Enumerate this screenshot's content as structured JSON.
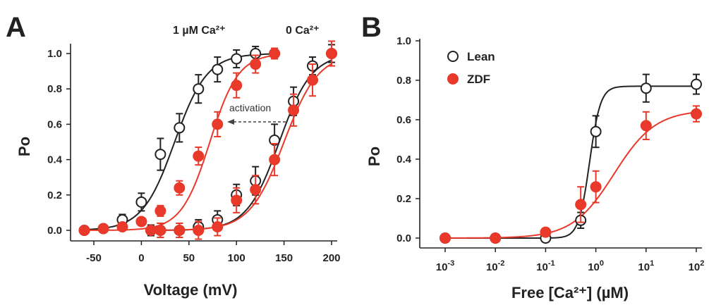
{
  "colors": {
    "lean": "#222222",
    "zdf": "#e8392a"
  },
  "chart_data": [
    {
      "panel_label": "A",
      "type": "scatter",
      "xlabel": "Voltage (mV)",
      "ylabel": "Po",
      "xlim": [
        -65,
        205
      ],
      "ylim": [
        -0.05,
        1.08
      ],
      "xticks": [
        -50,
        0,
        50,
        100,
        150,
        200
      ],
      "yticks": [
        "0.0",
        "0.2",
        "0.4",
        "0.6",
        "0.8",
        "1.0"
      ],
      "annotations": {
        "ca_1uM": "1 µM Ca²⁺",
        "ca_0": "0 Ca²⁺",
        "arrow_text": "activation"
      },
      "series": [
        {
          "key": "lean_1uM",
          "marker": "open",
          "x": [
            -60,
            -40,
            -20,
            0,
            20,
            40,
            60,
            80,
            100,
            120,
            140
          ],
          "y": [
            0.0,
            0.01,
            0.06,
            0.16,
            0.43,
            0.58,
            0.8,
            0.91,
            0.97,
            1.0,
            1.0
          ],
          "err": [
            0.01,
            0.02,
            0.03,
            0.05,
            0.09,
            0.08,
            0.08,
            0.07,
            0.05,
            0.04,
            0.02
          ]
        },
        {
          "key": "zdf_1uM",
          "marker": "filled",
          "x": [
            -60,
            -40,
            -20,
            0,
            20,
            40,
            60,
            80,
            100,
            120,
            140
          ],
          "y": [
            0.0,
            0.01,
            0.02,
            0.05,
            0.11,
            0.24,
            0.42,
            0.6,
            0.82,
            0.94,
            1.0
          ],
          "err": [
            0.01,
            0.01,
            0.02,
            0.02,
            0.03,
            0.04,
            0.05,
            0.07,
            0.07,
            0.05,
            0.03
          ]
        },
        {
          "key": "lean_0",
          "marker": "open",
          "x": [
            10,
            20,
            40,
            60,
            80,
            100,
            120,
            140,
            160,
            180,
            200
          ],
          "y": [
            0.0,
            0.0,
            0.0,
            0.02,
            0.06,
            0.2,
            0.28,
            0.51,
            0.73,
            0.93,
            1.0
          ],
          "err": [
            0.03,
            0.04,
            0.04,
            0.04,
            0.05,
            0.06,
            0.08,
            0.09,
            0.08,
            0.05,
            0.05
          ]
        },
        {
          "key": "zdf_0",
          "marker": "filled",
          "x": [
            10,
            20,
            40,
            60,
            80,
            100,
            120,
            140,
            160,
            180,
            200
          ],
          "y": [
            0.0,
            0.0,
            0.0,
            0.0,
            0.02,
            0.17,
            0.23,
            0.4,
            0.68,
            0.85,
            1.0
          ],
          "err": [
            0.02,
            0.04,
            0.04,
            0.05,
            0.05,
            0.07,
            0.08,
            0.09,
            0.09,
            0.09,
            0.07
          ]
        }
      ],
      "fits": [
        {
          "key": "lean_1uM",
          "v50": 35,
          "k": 17
        },
        {
          "key": "zdf_1uM",
          "v50": 72,
          "k": 15
        },
        {
          "key": "lean_0",
          "v50": 145,
          "k": 17
        },
        {
          "key": "zdf_0",
          "v50": 150,
          "k": 18
        }
      ]
    },
    {
      "panel_label": "B",
      "type": "scatter",
      "xscale": "log",
      "xlabel": "Free [Ca²⁺] (µM)",
      "ylabel": "Po",
      "xlim": [
        0.001,
        100
      ],
      "ylim": [
        -0.02,
        1.0
      ],
      "xticks": [
        {
          "base": "10",
          "exp": "-3"
        },
        {
          "base": "10",
          "exp": "-2"
        },
        {
          "base": "10",
          "exp": "-1"
        },
        {
          "base": "10",
          "exp": "0"
        },
        {
          "base": "10",
          "exp": "1"
        },
        {
          "base": "10",
          "exp": "2"
        }
      ],
      "yticks": [
        "0.0",
        "0.2",
        "0.4",
        "0.6",
        "0.8",
        "1.0"
      ],
      "legend": {
        "placement": "top-left",
        "items": [
          "Lean",
          "ZDF"
        ]
      },
      "series": [
        {
          "name": "Lean",
          "marker": "open",
          "x": [
            0.001,
            0.01,
            0.1,
            0.5,
            1,
            10,
            100
          ],
          "y": [
            0.0,
            0.0,
            0.0,
            0.09,
            0.54,
            0.76,
            0.78
          ],
          "err": [
            0.02,
            0.02,
            0.02,
            0.04,
            0.08,
            0.07,
            0.05
          ]
        },
        {
          "name": "ZDF",
          "marker": "filled",
          "x": [
            0.001,
            0.01,
            0.1,
            0.5,
            1,
            10,
            100
          ],
          "y": [
            0.0,
            0.0,
            0.03,
            0.17,
            0.26,
            0.57,
            0.63
          ],
          "err": [
            0.01,
            0.01,
            0.02,
            0.09,
            0.08,
            0.07,
            0.04
          ]
        }
      ],
      "fits": [
        {
          "name": "Lean",
          "max": 0.77,
          "ec50": 0.75,
          "n": 4
        },
        {
          "name": "ZDF",
          "max": 0.65,
          "ec50": 2.3,
          "n": 1.05
        }
      ]
    }
  ]
}
